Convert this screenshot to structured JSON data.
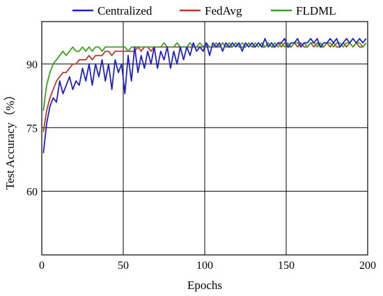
{
  "chart_data": {
    "type": "line",
    "xlabel": "Epochs",
    "ylabel": "Test Accuracy（%）",
    "xlim": [
      0,
      200
    ],
    "ylim": [
      45,
      100
    ],
    "xticks": [
      "0",
      "50",
      "100",
      "150",
      "200"
    ],
    "yticks": [
      "60",
      "75",
      "90"
    ],
    "grid": true,
    "legend_position": "top",
    "series": [
      {
        "name": "Centralized",
        "color": "#1f1fcc",
        "x": [
          1,
          3,
          5,
          7,
          9,
          11,
          13,
          15,
          17,
          19,
          21,
          23,
          25,
          27,
          29,
          31,
          33,
          35,
          37,
          39,
          41,
          43,
          45,
          47,
          49,
          51,
          53,
          55,
          57,
          59,
          61,
          63,
          65,
          67,
          69,
          71,
          73,
          75,
          77,
          79,
          81,
          83,
          85,
          87,
          89,
          91,
          93,
          95,
          97,
          99,
          101,
          103,
          105,
          107,
          109,
          111,
          113,
          115,
          117,
          119,
          121,
          123,
          125,
          127,
          129,
          131,
          133,
          135,
          137,
          139,
          141,
          143,
          145,
          147,
          149,
          151,
          153,
          155,
          157,
          159,
          161,
          163,
          165,
          167,
          169,
          171,
          173,
          175,
          177,
          179,
          181,
          183,
          185,
          187,
          189,
          191,
          193,
          195,
          197,
          199
        ],
        "y": [
          69,
          76,
          80,
          82,
          81,
          86,
          83,
          85,
          87,
          84,
          86,
          85,
          89,
          86,
          90,
          85,
          90,
          87,
          91,
          86,
          90,
          84,
          91,
          88,
          90,
          83,
          92,
          86,
          94,
          88,
          92,
          89,
          93,
          90,
          94,
          89,
          93,
          91,
          94,
          89,
          93,
          90,
          94,
          91,
          94,
          92,
          95,
          93,
          94,
          93,
          95,
          92,
          95,
          94,
          95,
          93,
          95,
          94,
          95,
          94,
          95,
          93,
          95,
          94,
          95,
          94,
          95,
          94,
          96,
          94,
          95,
          94,
          95,
          95,
          96,
          94,
          95,
          95,
          96,
          94,
          95,
          95,
          96,
          95,
          96,
          94,
          95,
          95,
          96,
          95,
          96,
          94,
          95,
          96,
          95,
          96,
          95,
          96,
          95,
          96
        ]
      },
      {
        "name": "FedAvg",
        "color": "#b83a2a",
        "x": [
          1,
          3,
          5,
          7,
          9,
          11,
          13,
          15,
          17,
          19,
          21,
          23,
          25,
          27,
          29,
          31,
          33,
          35,
          37,
          39,
          41,
          43,
          45,
          47,
          49,
          51,
          53,
          55,
          57,
          59,
          61,
          63,
          65,
          67,
          69,
          71,
          73,
          75,
          77,
          79,
          81,
          83,
          85,
          87,
          89,
          91,
          93,
          95,
          97,
          99,
          101,
          103,
          105,
          107,
          109,
          111,
          113,
          115,
          117,
          119,
          121,
          123,
          125,
          127,
          129,
          131,
          133,
          135,
          137,
          139,
          141,
          143,
          145,
          147,
          149,
          151,
          153,
          155,
          157,
          159,
          161,
          163,
          165,
          167,
          169,
          171,
          173,
          175,
          177,
          179,
          181,
          183,
          185,
          187,
          189,
          191,
          193,
          195,
          197,
          199
        ],
        "y": [
          74,
          79,
          82,
          84,
          86,
          87,
          88,
          88,
          89,
          90,
          90,
          91,
          91,
          91,
          92,
          91,
          92,
          92,
          92,
          93,
          93,
          92,
          93,
          93,
          93,
          93,
          93,
          93,
          93,
          94,
          93,
          94,
          94,
          93,
          94,
          94,
          94,
          94,
          94,
          94,
          94,
          94,
          94,
          94,
          94,
          94,
          94,
          94,
          94,
          94,
          94,
          94,
          94,
          94,
          94,
          95,
          94,
          94,
          94,
          95,
          94,
          94,
          94,
          95,
          94,
          94,
          95,
          94,
          94,
          95,
          94,
          94,
          95,
          94,
          95,
          94,
          94,
          95,
          94,
          95,
          94,
          94,
          95,
          94,
          95,
          94,
          94,
          95,
          94,
          95,
          94,
          94,
          95,
          94,
          95,
          94,
          95,
          94,
          94,
          95
        ]
      },
      {
        "name": "FLDML",
        "color": "#3aa01e",
        "x": [
          1,
          3,
          5,
          7,
          9,
          11,
          13,
          15,
          17,
          19,
          21,
          23,
          25,
          27,
          29,
          31,
          33,
          35,
          37,
          39,
          41,
          43,
          45,
          47,
          49,
          51,
          53,
          55,
          57,
          59,
          61,
          63,
          65,
          67,
          69,
          71,
          73,
          75,
          77,
          79,
          81,
          83,
          85,
          87,
          89,
          91,
          93,
          95,
          97,
          99,
          101,
          103,
          105,
          107,
          109,
          111,
          113,
          115,
          117,
          119,
          121,
          123,
          125,
          127,
          129,
          131,
          133,
          135,
          137,
          139,
          141,
          143,
          145,
          147,
          149,
          151,
          153,
          155,
          157,
          159,
          161,
          163,
          165,
          167,
          169,
          171,
          173,
          175,
          177,
          179,
          181,
          183,
          185,
          187,
          189,
          191,
          193,
          195,
          197,
          199
        ],
        "y": [
          79,
          85,
          88,
          90,
          91,
          92,
          93,
          92,
          93,
          94,
          93,
          93,
          94,
          93,
          94,
          93,
          94,
          94,
          93,
          94,
          94,
          94,
          94,
          94,
          94,
          94,
          93,
          94,
          94,
          94,
          94,
          94,
          94,
          94,
          94,
          94,
          94,
          95,
          94,
          94,
          94,
          95,
          94,
          94,
          94,
          95,
          94,
          94,
          95,
          94,
          95,
          94,
          94,
          95,
          94,
          95,
          94,
          95,
          94,
          95,
          94,
          95,
          94,
          95,
          94,
          95,
          94,
          95,
          94,
          95,
          94,
          95,
          94,
          95,
          94,
          95,
          94,
          95,
          95,
          94,
          95,
          94,
          95,
          95,
          94,
          95,
          94,
          95,
          95,
          94,
          95,
          95,
          94,
          95,
          95,
          94,
          95,
          95,
          94,
          95
        ]
      }
    ]
  }
}
